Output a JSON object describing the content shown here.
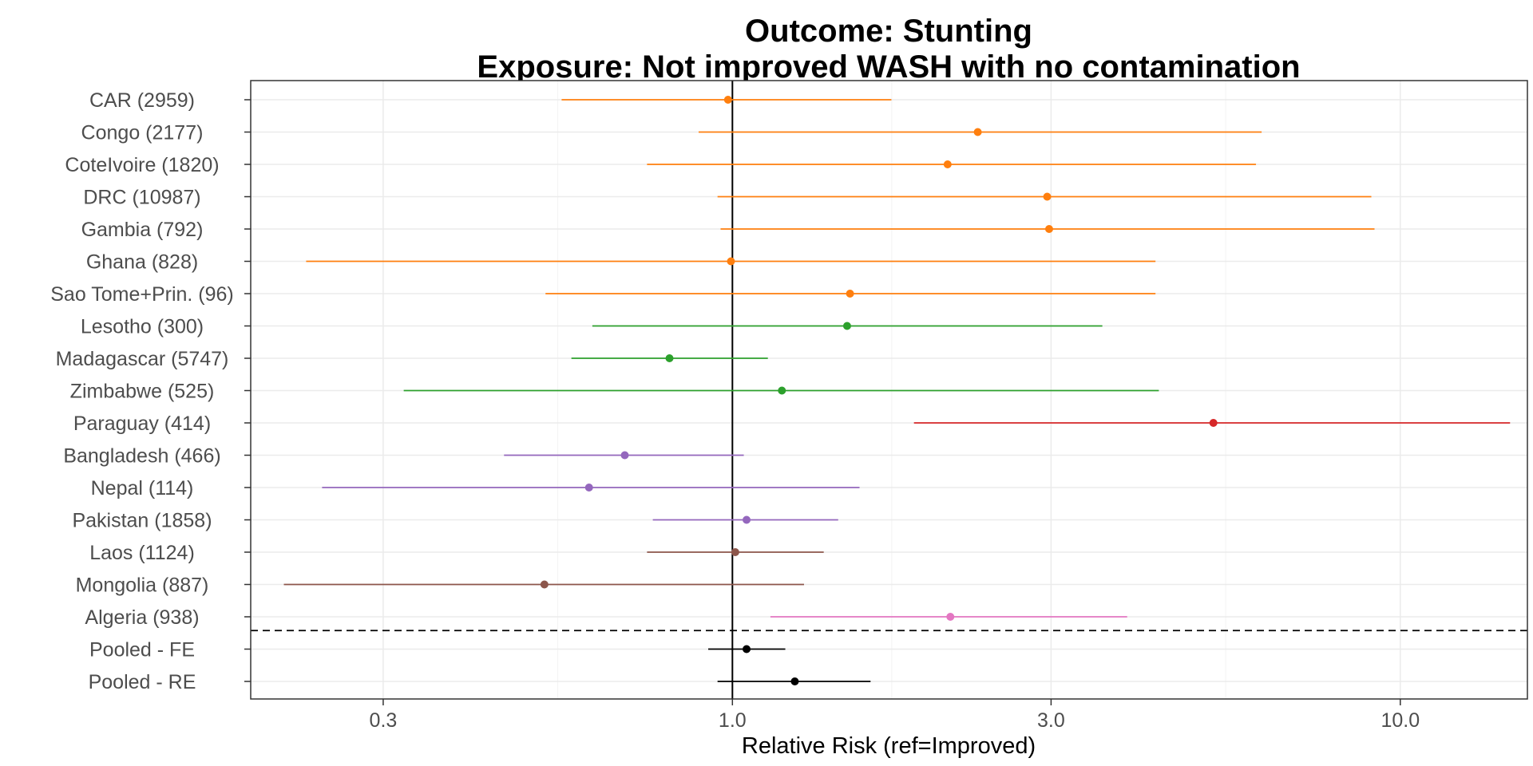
{
  "chart_data": {
    "type": "forest",
    "title_line1": "Outcome: Stunting",
    "title_line2": "Exposure: Not improved WASH with no contamination",
    "xlabel": "Relative Risk (ref=Improved)",
    "x_scale": "log",
    "xlim": [
      0.19,
      15.5
    ],
    "x_ticks": [
      {
        "value": 0.3,
        "label": "0.3"
      },
      {
        "value": 1.0,
        "label": "1.0"
      },
      {
        "value": 3.0,
        "label": "3.0"
      },
      {
        "value": 10.0,
        "label": "10.0"
      }
    ],
    "reference_line": 1.0,
    "grid": true,
    "rows": [
      {
        "label": "CAR (2959)",
        "est": 0.985,
        "lo": 0.555,
        "hi": 1.73,
        "color": "#ff7f0e"
      },
      {
        "label": "Congo (2177)",
        "est": 2.33,
        "lo": 0.89,
        "hi": 6.2,
        "color": "#ff7f0e"
      },
      {
        "label": "CoteIvoire (1820)",
        "est": 2.1,
        "lo": 0.745,
        "hi": 6.08,
        "color": "#ff7f0e"
      },
      {
        "label": "DRC (10987)",
        "est": 2.96,
        "lo": 0.95,
        "hi": 9.05,
        "color": "#ff7f0e"
      },
      {
        "label": "Gambia (792)",
        "est": 2.98,
        "lo": 0.96,
        "hi": 9.15,
        "color": "#ff7f0e"
      },
      {
        "label": "Ghana (828)",
        "est": 0.995,
        "lo": 0.23,
        "hi": 4.3,
        "color": "#ff7f0e"
      },
      {
        "label": "Sao Tome+Prin. (96)",
        "est": 1.5,
        "lo": 0.525,
        "hi": 4.3,
        "color": "#ff7f0e"
      },
      {
        "label": "Lesotho (300)",
        "est": 1.485,
        "lo": 0.617,
        "hi": 3.58,
        "color": "#2ca02c"
      },
      {
        "label": "Madagascar (5747)",
        "est": 0.805,
        "lo": 0.574,
        "hi": 1.13,
        "color": "#2ca02c"
      },
      {
        "label": "Zimbabwe (525)",
        "est": 1.186,
        "lo": 0.322,
        "hi": 4.35,
        "color": "#2ca02c"
      },
      {
        "label": "Paraguay (414)",
        "est": 5.25,
        "lo": 1.87,
        "hi": 14.6,
        "color": "#d62728"
      },
      {
        "label": "Bangladesh (466)",
        "est": 0.69,
        "lo": 0.455,
        "hi": 1.04,
        "color": "#9467bd"
      },
      {
        "label": "Nepal (114)",
        "est": 0.61,
        "lo": 0.243,
        "hi": 1.55,
        "color": "#9467bd"
      },
      {
        "label": "Pakistan (1858)",
        "est": 1.05,
        "lo": 0.76,
        "hi": 1.44,
        "color": "#9467bd"
      },
      {
        "label": "Laos (1124)",
        "est": 1.01,
        "lo": 0.745,
        "hi": 1.37,
        "color": "#8c564b"
      },
      {
        "label": "Mongolia (887)",
        "est": 0.523,
        "lo": 0.213,
        "hi": 1.28,
        "color": "#8c564b"
      },
      {
        "label": "Algeria (938)",
        "est": 2.12,
        "lo": 1.14,
        "hi": 3.9,
        "color": "#e377c2"
      },
      {
        "label": "Pooled - FE",
        "est": 1.05,
        "lo": 0.92,
        "hi": 1.2,
        "color": "#000000"
      },
      {
        "label": "Pooled - RE",
        "est": 1.24,
        "lo": 0.95,
        "hi": 1.61,
        "color": "#000000"
      }
    ],
    "separator_after_row": 17
  }
}
